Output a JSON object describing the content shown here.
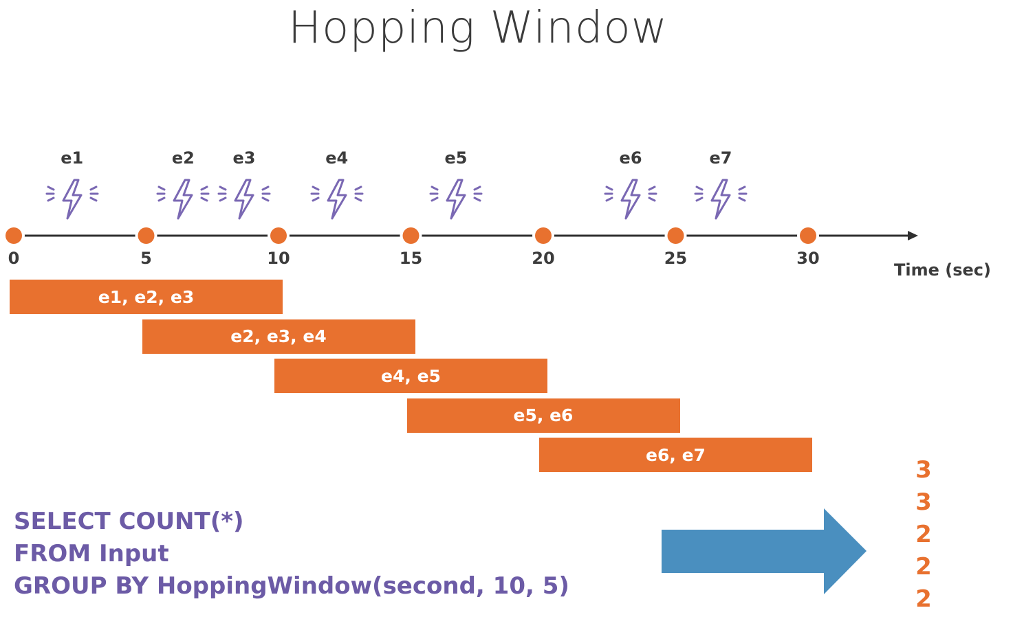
{
  "title": "Hopping Window",
  "colors": {
    "accent": "#e8712f",
    "icon": "#7a68b3",
    "query": "#6c5ba6",
    "arrow": "#4a8fbf",
    "text": "#3c3c3c"
  },
  "events": [
    {
      "label": "e1",
      "time": 2.2,
      "icon": "lightning-icon"
    },
    {
      "label": "e2",
      "time": 6.4,
      "icon": "lightning-icon"
    },
    {
      "label": "e3",
      "time": 8.7,
      "icon": "lightning-icon"
    },
    {
      "label": "e4",
      "time": 12.2,
      "icon": "lightning-icon"
    },
    {
      "label": "e5",
      "time": 16.7,
      "icon": "lightning-icon"
    },
    {
      "label": "e6",
      "time": 23.3,
      "icon": "lightning-icon"
    },
    {
      "label": "e7",
      "time": 26.7,
      "icon": "lightning-icon"
    }
  ],
  "axis": {
    "ticks": [
      "0",
      "5",
      "10",
      "15",
      "20",
      "25",
      "30"
    ],
    "tick_values": [
      0,
      5,
      10,
      15,
      20,
      25,
      30
    ],
    "label": "Time (sec)"
  },
  "windows": [
    {
      "start": 0,
      "end": 10,
      "label": "e1, e2, e3"
    },
    {
      "start": 5,
      "end": 15,
      "label": "e2, e3, e4"
    },
    {
      "start": 10,
      "end": 20,
      "label": "e4, e5"
    },
    {
      "start": 15,
      "end": 25,
      "label": "e5, e6"
    },
    {
      "start": 20,
      "end": 30,
      "label": "e6, e7"
    }
  ],
  "query": {
    "line1": "SELECT COUNT(*)",
    "line2": "FROM Input",
    "line3": "GROUP BY HoppingWindow(second, 10, 5)"
  },
  "results": [
    "3",
    "3",
    "2",
    "2",
    "2"
  ]
}
